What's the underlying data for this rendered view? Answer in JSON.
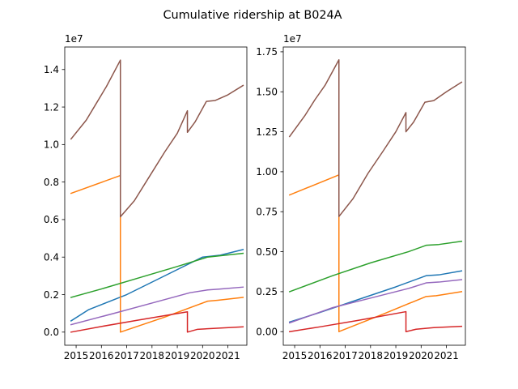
{
  "figure": {
    "title": "Cumulative ridership at B024A"
  },
  "chart_data": [
    {
      "type": "line",
      "title": "",
      "xlabel": "",
      "ylabel": "",
      "y_offset_label": "1e7",
      "xlim": [
        2014.55,
        2021.75
      ],
      "ylim": [
        -0.07,
        1.52
      ],
      "x_ticks": [
        2015,
        2016,
        2017,
        2018,
        2019,
        2020,
        2021
      ],
      "x_tick_labels": [
        "2015",
        "2016",
        "2017",
        "2018",
        "2019",
        "2020",
        "2021"
      ],
      "y_ticks": [
        0.0,
        0.2,
        0.4,
        0.6,
        0.8,
        1.0,
        1.2,
        1.4
      ],
      "y_tick_labels": [
        "0.0",
        "0.2",
        "0.4",
        "0.6",
        "0.8",
        "1.0",
        "1.2",
        "1.4"
      ],
      "grid": false,
      "legend": "none",
      "series": [
        {
          "color": "#1f77b4",
          "points": [
            [
              2014.8,
              0.06
            ],
            [
              2015.5,
              0.12
            ],
            [
              2017.0,
              0.2
            ],
            [
              2018.5,
              0.3
            ],
            [
              2020.0,
              0.4
            ],
            [
              2020.7,
              0.41
            ],
            [
              2021.6,
              0.44
            ]
          ]
        },
        {
          "color": "#ff7f0e",
          "points": [
            [
              2014.8,
              0.74
            ],
            [
              2016.75,
              0.835
            ],
            [
              2016.75,
              0.0
            ],
            [
              2018.5,
              0.08
            ],
            [
              2020.2,
              0.165
            ],
            [
              2020.6,
              0.17
            ],
            [
              2021.6,
              0.185
            ]
          ]
        },
        {
          "color": "#2ca02c",
          "points": [
            [
              2014.8,
              0.185
            ],
            [
              2016.0,
              0.23
            ],
            [
              2017.5,
              0.29
            ],
            [
              2019.0,
              0.35
            ],
            [
              2020.2,
              0.4
            ],
            [
              2021.6,
              0.42
            ]
          ]
        },
        {
          "color": "#d62728",
          "points": [
            [
              2014.8,
              0.0
            ],
            [
              2016.0,
              0.03
            ],
            [
              2017.5,
              0.065
            ],
            [
              2019.4,
              0.108
            ],
            [
              2019.4,
              0.0
            ],
            [
              2019.8,
              0.015
            ],
            [
              2020.5,
              0.02
            ],
            [
              2021.6,
              0.028
            ]
          ]
        },
        {
          "color": "#9467bd",
          "points": [
            [
              2014.8,
              0.04
            ],
            [
              2016.5,
              0.1
            ],
            [
              2018.0,
              0.155
            ],
            [
              2019.5,
              0.21
            ],
            [
              2020.2,
              0.225
            ],
            [
              2020.7,
              0.23
            ],
            [
              2021.6,
              0.24
            ]
          ]
        },
        {
          "color": "#8c564b",
          "points": [
            [
              2014.8,
              1.03
            ],
            [
              2015.4,
              1.13
            ],
            [
              2015.8,
              1.22
            ],
            [
              2016.2,
              1.31
            ],
            [
              2016.75,
              1.45
            ],
            [
              2016.75,
              0.615
            ],
            [
              2017.3,
              0.7
            ],
            [
              2017.9,
              0.83
            ],
            [
              2018.5,
              0.96
            ],
            [
              2019.0,
              1.06
            ],
            [
              2019.4,
              1.18
            ],
            [
              2019.4,
              1.065
            ],
            [
              2019.7,
              1.12
            ],
            [
              2020.15,
              1.23
            ],
            [
              2020.5,
              1.235
            ],
            [
              2021.0,
              1.265
            ],
            [
              2021.6,
              1.315
            ]
          ]
        }
      ]
    },
    {
      "type": "line",
      "title": "",
      "xlabel": "",
      "ylabel": "",
      "y_offset_label": "1e7",
      "xlim": [
        2014.55,
        2021.75
      ],
      "ylim": [
        -0.085,
        1.78
      ],
      "x_ticks": [
        2015,
        2016,
        2017,
        2018,
        2019,
        2020,
        2021
      ],
      "x_tick_labels": [
        "2015",
        "2016",
        "2017",
        "2018",
        "2019",
        "2020",
        "2021"
      ],
      "y_ticks": [
        0.0,
        0.25,
        0.5,
        0.75,
        1.0,
        1.25,
        1.5,
        1.75
      ],
      "y_tick_labels": [
        "0.00",
        "0.25",
        "0.50",
        "0.75",
        "1.00",
        "1.25",
        "1.50",
        "1.75"
      ],
      "grid": false,
      "legend": "none",
      "series": [
        {
          "color": "#1f77b4",
          "points": [
            [
              2014.8,
              0.06
            ],
            [
              2016.0,
              0.12
            ],
            [
              2017.5,
              0.2
            ],
            [
              2019.0,
              0.28
            ],
            [
              2020.2,
              0.35
            ],
            [
              2020.7,
              0.355
            ],
            [
              2021.6,
              0.38
            ]
          ]
        },
        {
          "color": "#ff7f0e",
          "points": [
            [
              2014.8,
              0.855
            ],
            [
              2016.75,
              0.98
            ],
            [
              2016.75,
              0.0
            ],
            [
              2018.5,
              0.11
            ],
            [
              2020.2,
              0.22
            ],
            [
              2020.6,
              0.225
            ],
            [
              2021.6,
              0.25
            ]
          ]
        },
        {
          "color": "#2ca02c",
          "points": [
            [
              2014.8,
              0.25
            ],
            [
              2016.5,
              0.35
            ],
            [
              2018.0,
              0.43
            ],
            [
              2019.5,
              0.5
            ],
            [
              2020.2,
              0.54
            ],
            [
              2020.7,
              0.545
            ],
            [
              2021.6,
              0.565
            ]
          ]
        },
        {
          "color": "#d62728",
          "points": [
            [
              2014.8,
              0.0
            ],
            [
              2016.0,
              0.03
            ],
            [
              2017.5,
              0.07
            ],
            [
              2019.4,
              0.125
            ],
            [
              2019.4,
              0.0
            ],
            [
              2019.8,
              0.015
            ],
            [
              2020.5,
              0.025
            ],
            [
              2021.6,
              0.033
            ]
          ]
        },
        {
          "color": "#9467bd",
          "points": [
            [
              2014.8,
              0.055
            ],
            [
              2016.5,
              0.15
            ],
            [
              2018.0,
              0.21
            ],
            [
              2019.5,
              0.27
            ],
            [
              2020.2,
              0.305
            ],
            [
              2020.7,
              0.31
            ],
            [
              2021.6,
              0.325
            ]
          ]
        },
        {
          "color": "#8c564b",
          "points": [
            [
              2014.8,
              1.22
            ],
            [
              2015.4,
              1.35
            ],
            [
              2015.8,
              1.45
            ],
            [
              2016.2,
              1.54
            ],
            [
              2016.75,
              1.7
            ],
            [
              2016.75,
              0.72
            ],
            [
              2017.3,
              0.83
            ],
            [
              2017.9,
              0.99
            ],
            [
              2018.5,
              1.13
            ],
            [
              2019.0,
              1.25
            ],
            [
              2019.4,
              1.37
            ],
            [
              2019.4,
              1.25
            ],
            [
              2019.7,
              1.31
            ],
            [
              2020.15,
              1.435
            ],
            [
              2020.5,
              1.445
            ],
            [
              2021.0,
              1.5
            ],
            [
              2021.6,
              1.56
            ]
          ]
        }
      ]
    }
  ]
}
